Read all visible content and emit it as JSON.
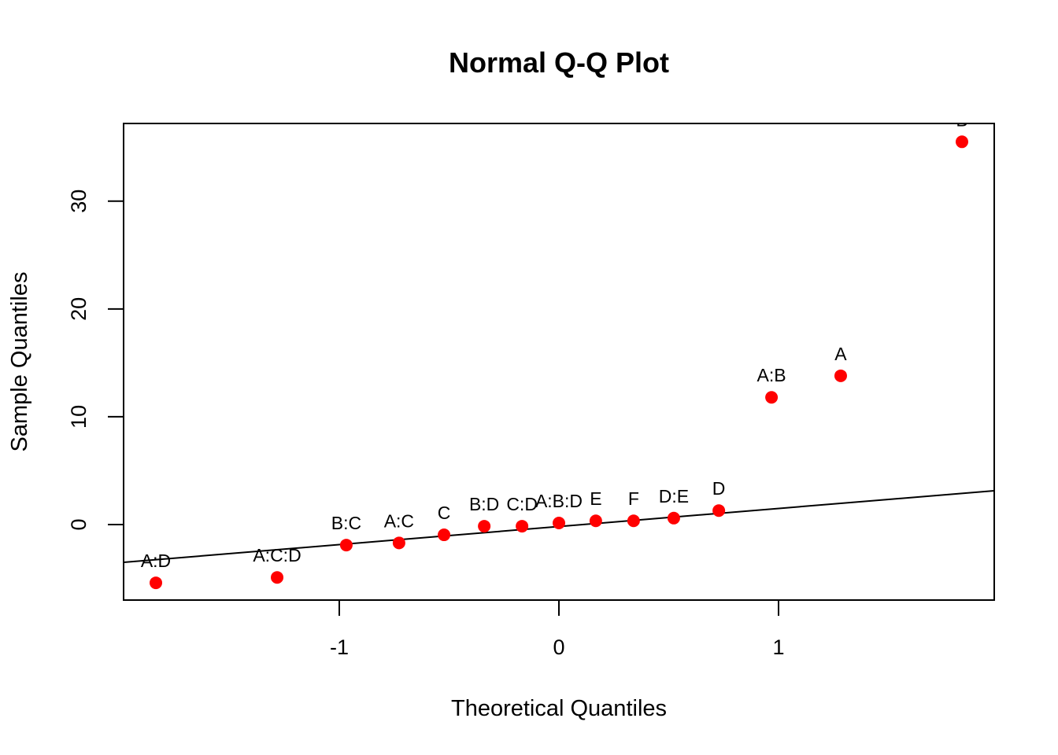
{
  "chart_data": {
    "type": "scatter",
    "title": "Normal Q-Q Plot",
    "xlabel": "Theoretical Quantiles",
    "ylabel": "Sample Quantiles",
    "xlim": [
      -1.982,
      1.982
    ],
    "ylim": [
      -7.0,
      37.2
    ],
    "xticks": [
      -1,
      0,
      1
    ],
    "xtick_labels": [
      "-1",
      "0",
      "1"
    ],
    "yticks": [
      0,
      10,
      20,
      30
    ],
    "ytick_labels": [
      "0",
      "10",
      "20",
      "30"
    ],
    "grid": false,
    "point_color": "#ff0000",
    "points": [
      {
        "label": "A:D",
        "x": -1.835,
        "y": -5.4
      },
      {
        "label": "A:C:D",
        "x": -1.283,
        "y": -4.9
      },
      {
        "label": "B:C",
        "x": -0.968,
        "y": -1.9
      },
      {
        "label": "A:C",
        "x": -0.728,
        "y": -1.7
      },
      {
        "label": "C",
        "x": -0.523,
        "y": -0.95
      },
      {
        "label": "B:D",
        "x": -0.34,
        "y": -0.15
      },
      {
        "label": "C:D",
        "x": -0.168,
        "y": -0.15
      },
      {
        "label": "A:B:D",
        "x": 0,
        "y": 0.15
      },
      {
        "label": "E",
        "x": 0.168,
        "y": 0.35
      },
      {
        "label": "F",
        "x": 0.34,
        "y": 0.35
      },
      {
        "label": "D:E",
        "x": 0.523,
        "y": 0.6
      },
      {
        "label": "D",
        "x": 0.728,
        "y": 1.3
      },
      {
        "label": "A:B",
        "x": 0.968,
        "y": 11.8
      },
      {
        "label": "A",
        "x": 1.283,
        "y": 13.8
      },
      {
        "label": "B",
        "x": 1.835,
        "y": 35.5
      }
    ],
    "reference_line": {
      "intercept": -0.18,
      "slope": 1.675
    }
  }
}
